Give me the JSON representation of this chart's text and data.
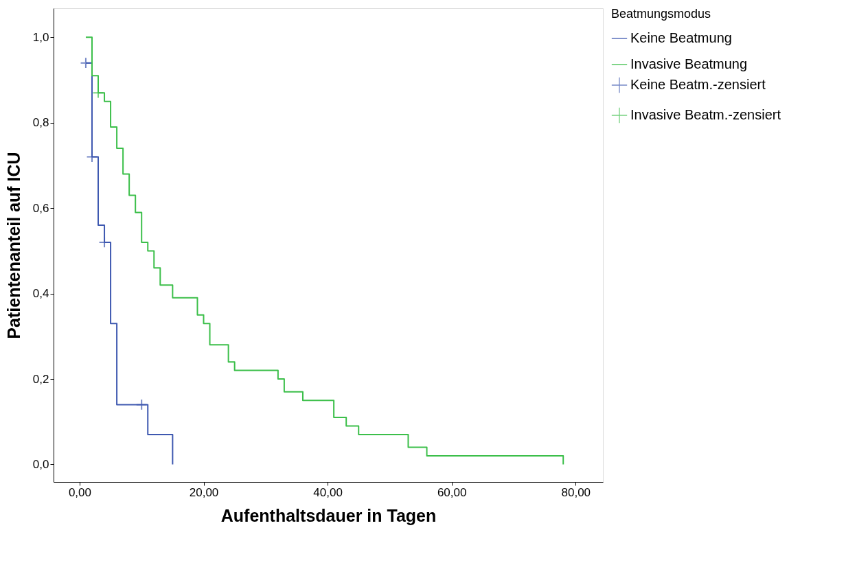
{
  "chart_data": {
    "type": "step",
    "xlabel": "Aufenthaltsdauer in Tagen",
    "ylabel": "Patientenanteil auf ICU",
    "legend_title": "Beatmungsmodus",
    "xlim": [
      -4.2,
      84.4
    ],
    "ylim": [
      -0.041,
      1.068
    ],
    "xticks": [
      {
        "value": 0,
        "label": "0,00"
      },
      {
        "value": 20,
        "label": "20,00"
      },
      {
        "value": 40,
        "label": "40,00"
      },
      {
        "value": 60,
        "label": "60,00"
      },
      {
        "value": 80,
        "label": "80,00"
      }
    ],
    "yticks": [
      {
        "value": 0,
        "label": "0,0"
      },
      {
        "value": 0.2,
        "label": "0,2"
      },
      {
        "value": 0.4,
        "label": "0,4"
      },
      {
        "value": 0.6,
        "label": "0,6"
      },
      {
        "value": 0.8,
        "label": "0,8"
      },
      {
        "value": 1.0,
        "label": "1,0"
      }
    ],
    "grid": false,
    "legend": "right",
    "series": [
      {
        "name": "Keine Beatmung",
        "color": "#3e58b0",
        "x": [
          1,
          2,
          3,
          4,
          5,
          6,
          11,
          15
        ],
        "values": [
          0.94,
          0.72,
          0.56,
          0.52,
          0.33,
          0.14,
          0.07,
          0.0
        ]
      },
      {
        "name": "Invasive Beatmung",
        "color": "#3cbf4a",
        "x": [
          1,
          2,
          3,
          4,
          5,
          6,
          7,
          8,
          9,
          10,
          11,
          12,
          13,
          15,
          19,
          20,
          21,
          24,
          25,
          32,
          33,
          36,
          41,
          43,
          45,
          53,
          56,
          78
        ],
        "values": [
          1.0,
          0.91,
          0.87,
          0.85,
          0.79,
          0.74,
          0.68,
          0.63,
          0.59,
          0.52,
          0.5,
          0.46,
          0.42,
          0.39,
          0.35,
          0.33,
          0.28,
          0.24,
          0.22,
          0.2,
          0.17,
          0.15,
          0.11,
          0.09,
          0.07,
          0.04,
          0.02,
          0.0
        ]
      },
      {
        "name": "Keine Beatm.-zensiert",
        "type": "scatter",
        "marker": "cross",
        "color": "#3e58b0",
        "x": [
          1,
          2,
          4,
          10
        ],
        "values": [
          0.94,
          0.72,
          0.52,
          0.14
        ]
      },
      {
        "name": "Invasive Beatm.-zensiert",
        "type": "scatter",
        "marker": "cross",
        "color": "#3cbf4a",
        "x": [
          3
        ],
        "values": [
          0.87
        ]
      }
    ]
  }
}
